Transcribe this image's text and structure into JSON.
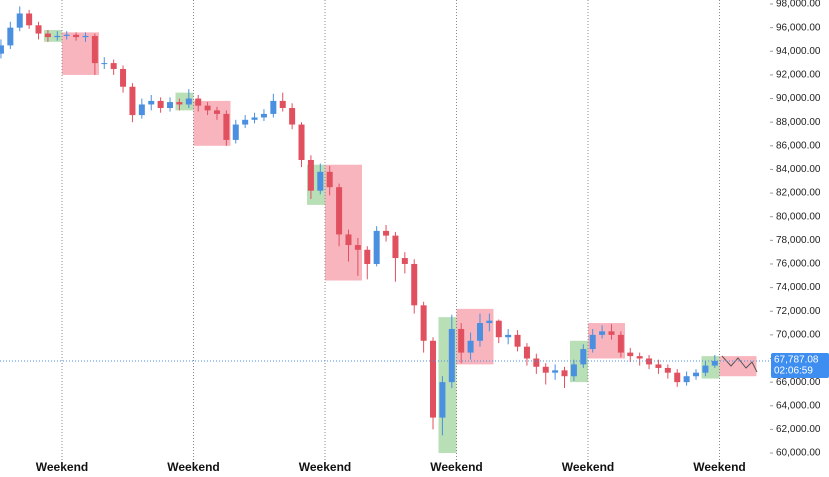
{
  "chart_data": {
    "type": "candlestick",
    "open": [
      93800,
      94500,
      96000,
      97200,
      96200,
      95500,
      95200,
      95300,
      95400,
      95200,
      95300,
      93000,
      93000,
      92500,
      91000,
      88600,
      89500,
      89800,
      89200,
      89700,
      89500,
      90000,
      89400,
      89000,
      88700,
      86500,
      87800,
      88200,
      88400,
      88700,
      89800,
      89200,
      87800,
      84800,
      82200,
      83800,
      82500,
      78500,
      77600,
      77200,
      76000,
      78800,
      78400,
      76500,
      76000,
      72500,
      69500,
      63000,
      66000,
      70500,
      68500,
      69500,
      71000,
      71200,
      69800,
      70000,
      69000,
      68000,
      67300,
      66800,
      67000,
      66500,
      67500,
      68800,
      70000,
      70300,
      70000,
      68500,
      68200,
      68000,
      67500,
      67200,
      66800,
      66000,
      66500,
      66800,
      67400
    ],
    "high": [
      95000,
      96500,
      97800,
      97500,
      96500,
      95800,
      95700,
      95700,
      95600,
      95600,
      95500,
      93500,
      93300,
      92800,
      91300,
      90000,
      90300,
      90100,
      90100,
      90000,
      90800,
      90300,
      89700,
      89300,
      89000,
      88200,
      88600,
      88800,
      89100,
      90400,
      90500,
      89600,
      88000,
      85200,
      84500,
      84300,
      82800,
      78900,
      78200,
      77500,
      79200,
      79300,
      78700,
      77000,
      76400,
      72800,
      69800,
      66500,
      71700,
      71000,
      70200,
      71800,
      71800,
      71300,
      70500,
      70400,
      69300,
      68400,
      67600,
      67500,
      67300,
      67900,
      69200,
      70500,
      70800,
      70900,
      70300,
      68900,
      68500,
      68300,
      67900,
      67500,
      67100,
      66900,
      67100,
      67800,
      68300
    ],
    "low": [
      93400,
      94200,
      95700,
      95900,
      95000,
      94800,
      94900,
      95000,
      94900,
      94800,
      92000,
      92500,
      92000,
      90500,
      88000,
      88300,
      89000,
      88800,
      88900,
      89000,
      89200,
      88900,
      88600,
      88200,
      86000,
      86200,
      87500,
      87900,
      88100,
      88400,
      88900,
      87400,
      84200,
      81500,
      81900,
      81800,
      77500,
      76200,
      75000,
      74700,
      75800,
      77900,
      74500,
      75200,
      71800,
      68500,
      62000,
      61500,
      65500,
      67600,
      67900,
      69000,
      70300,
      69300,
      69200,
      68600,
      67400,
      66700,
      65800,
      66200,
      65500,
      66100,
      67200,
      68500,
      69700,
      69600,
      68100,
      67700,
      67400,
      67100,
      66700,
      66300,
      65600,
      65700,
      66200,
      66500,
      67200
    ],
    "close": [
      94500,
      96000,
      97200,
      96200,
      95500,
      95200,
      95300,
      95400,
      95200,
      95300,
      93000,
      93000,
      92500,
      91000,
      88600,
      89500,
      89800,
      89200,
      89700,
      89500,
      90000,
      89400,
      89000,
      88700,
      86500,
      87800,
      88200,
      88400,
      88700,
      89800,
      89200,
      87800,
      84800,
      82200,
      83800,
      82500,
      78500,
      77600,
      77200,
      76000,
      78800,
      78400,
      76500,
      76000,
      72500,
      69500,
      63000,
      66000,
      70500,
      68500,
      69500,
      71000,
      71200,
      69800,
      70000,
      69000,
      68000,
      67300,
      66800,
      67000,
      66500,
      67500,
      68800,
      70000,
      70300,
      70000,
      68500,
      68200,
      68000,
      67500,
      67200,
      66800,
      66000,
      66500,
      66800,
      67400,
      67800
    ],
    "up_color": "#4a8fe0",
    "down_color": "#e0505f",
    "before_color": "#b9dfb6",
    "after_color": "#f9b5be",
    "weekends": [
      {
        "label": "Weekend",
        "before": [
          94800,
          95800
        ],
        "after": [
          92000,
          95600
        ]
      },
      {
        "label": "Weekend",
        "before": [
          89000,
          90500
        ],
        "after": [
          86000,
          89800
        ]
      },
      {
        "label": "Weekend",
        "before": [
          81000,
          84400
        ],
        "after": [
          74600,
          84400
        ]
      },
      {
        "label": "Weekend",
        "before": [
          60000,
          71500
        ],
        "after": [
          67500,
          72200
        ]
      },
      {
        "label": "Weekend",
        "before": [
          66000,
          69500
        ],
        "after": [
          68000,
          71000
        ]
      },
      {
        "label": "Weekend",
        "before": [
          66300,
          68200
        ],
        "after": [
          66500,
          68200
        ]
      }
    ],
    "current_price": {
      "value": 67787.08,
      "label": "67,787.08",
      "countdown": "02:06:59"
    },
    "ylim": [
      59410,
      98340
    ],
    "yticks": [
      {
        "value": 60000,
        "label": "60,000.00"
      },
      {
        "value": 62000,
        "label": "62,000.00"
      },
      {
        "value": 64000,
        "label": "64,000.00"
      },
      {
        "value": 66000,
        "label": "66,000.00"
      },
      {
        "value": 68000,
        "label": "68,000.00"
      },
      {
        "value": 70000,
        "label": "70,000.00"
      },
      {
        "value": 72000,
        "label": "72,000.00"
      },
      {
        "value": 74000,
        "label": "74,000.00"
      },
      {
        "value": 76000,
        "label": "76,000.00"
      },
      {
        "value": 78000,
        "label": "78,000.00"
      },
      {
        "value": 80000,
        "label": "80,000.00"
      },
      {
        "value": 82000,
        "label": "82,000.00"
      },
      {
        "value": 84000,
        "label": "84,000.00"
      },
      {
        "value": 86000,
        "label": "86,000.00"
      },
      {
        "value": 88000,
        "label": "88,000.00"
      },
      {
        "value": 90000,
        "label": "90,000.00"
      },
      {
        "value": 92000,
        "label": "92,000.00"
      },
      {
        "value": 94000,
        "label": "94,000.00"
      },
      {
        "value": 96000,
        "label": "96,000.00"
      },
      {
        "value": 98000,
        "label": "98,000.00"
      }
    ]
  }
}
